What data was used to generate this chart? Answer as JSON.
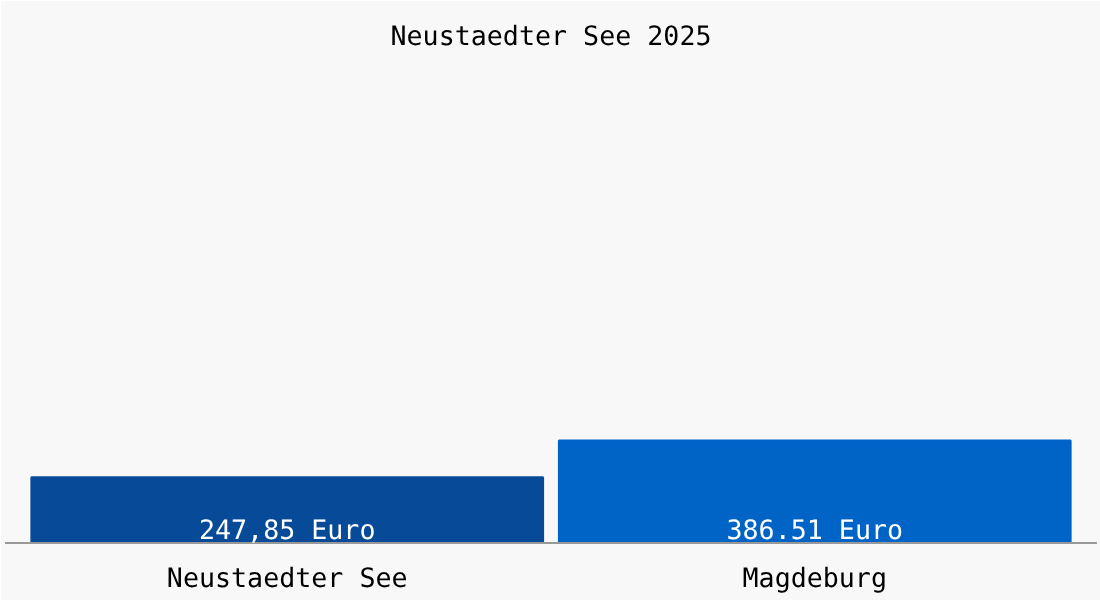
{
  "chart_data": {
    "type": "bar",
    "title": "Neustaedter See 2025",
    "categories": [
      "Neustaedter See",
      "Magdeburg"
    ],
    "values": [
      247.85,
      386.51
    ],
    "colors": [
      "#064a98",
      "#0063c6"
    ],
    "value_labels": [
      "247,85 Euro",
      "386.51 Euro"
    ],
    "grid": false
  }
}
